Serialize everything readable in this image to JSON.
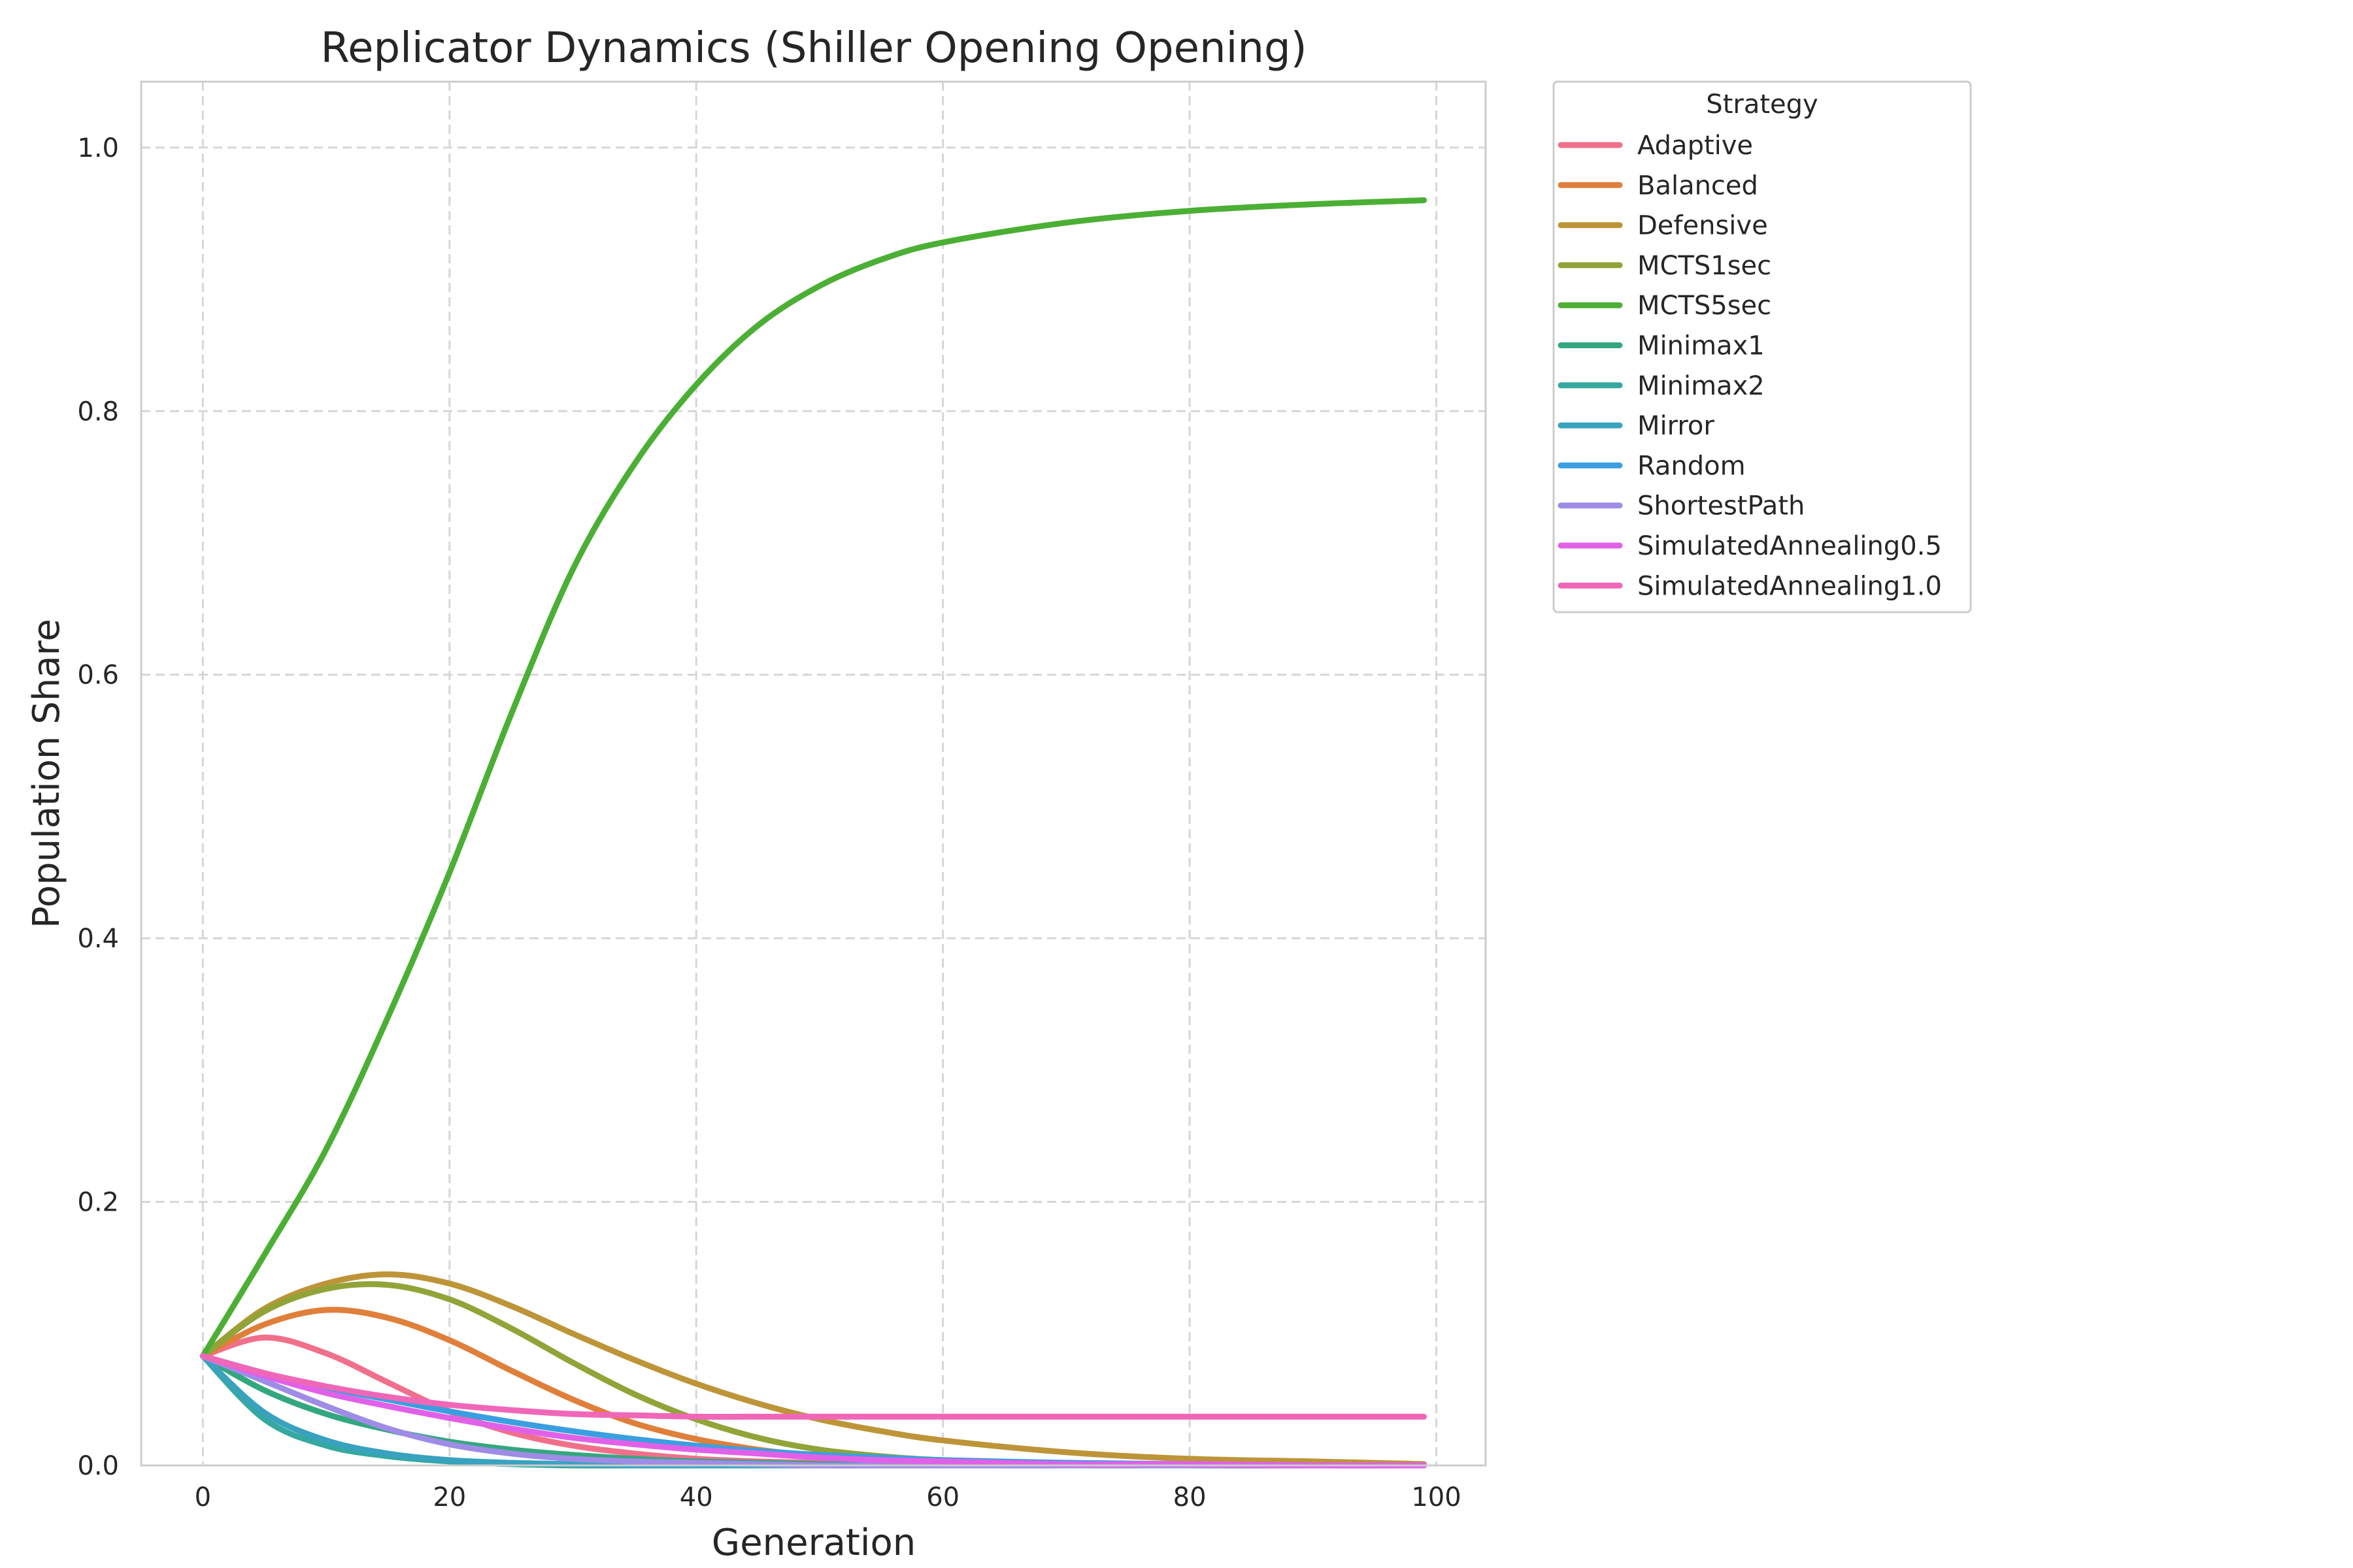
{
  "chart_data": {
    "type": "line",
    "title": "Replicator Dynamics (Shiller Opening Opening)",
    "xlabel": "Generation",
    "ylabel": "Population Share",
    "xlim": [
      -5,
      104
    ],
    "ylim": [
      0,
      1.05
    ],
    "xticks": [
      0,
      20,
      40,
      60,
      80,
      100
    ],
    "yticks": [
      0.0,
      0.2,
      0.4,
      0.6,
      0.8,
      1.0
    ],
    "xtick_labels": [
      "0",
      "20",
      "40",
      "60",
      "80",
      "100"
    ],
    "ytick_labels": [
      "0.0",
      "0.2",
      "0.4",
      "0.6",
      "0.8",
      "1.0"
    ],
    "grid": true,
    "legend_title": "Strategy",
    "legend_position": "outside upper right",
    "x": [
      0,
      5,
      10,
      15,
      20,
      25,
      30,
      35,
      40,
      45,
      50,
      55,
      60,
      70,
      80,
      90,
      99
    ],
    "series": [
      {
        "name": "Adaptive",
        "color": "#f0708c",
        "values": [
          0.083,
          0.097,
          0.085,
          0.063,
          0.041,
          0.025,
          0.015,
          0.009,
          0.005,
          0.003,
          0.002,
          0.001,
          0.001,
          0.0,
          0.0,
          0.0,
          0.0
        ]
      },
      {
        "name": "Balanced",
        "color": "#e07f3a",
        "values": [
          0.083,
          0.107,
          0.118,
          0.112,
          0.095,
          0.072,
          0.05,
          0.032,
          0.02,
          0.012,
          0.007,
          0.004,
          0.002,
          0.001,
          0.0,
          0.0,
          0.0
        ]
      },
      {
        "name": "Defensive",
        "color": "#bd9538",
        "values": [
          0.083,
          0.119,
          0.138,
          0.145,
          0.138,
          0.121,
          0.1,
          0.08,
          0.062,
          0.047,
          0.035,
          0.026,
          0.019,
          0.01,
          0.005,
          0.003,
          0.001
        ]
      },
      {
        "name": "MCTS1sec",
        "color": "#90a438",
        "values": [
          0.083,
          0.117,
          0.134,
          0.137,
          0.126,
          0.104,
          0.078,
          0.054,
          0.035,
          0.021,
          0.012,
          0.007,
          0.004,
          0.001,
          0.0,
          0.0,
          0.0
        ]
      },
      {
        "name": "MCTS5sec",
        "color": "#4caf35",
        "values": [
          0.083,
          0.16,
          0.24,
          0.34,
          0.45,
          0.57,
          0.68,
          0.76,
          0.82,
          0.865,
          0.895,
          0.915,
          0.928,
          0.943,
          0.952,
          0.957,
          0.96
        ]
      },
      {
        "name": "Minimax1",
        "color": "#33a77e",
        "values": [
          0.083,
          0.057,
          0.039,
          0.027,
          0.018,
          0.012,
          0.008,
          0.005,
          0.003,
          0.002,
          0.001,
          0.001,
          0.0,
          0.0,
          0.0,
          0.0,
          0.0
        ]
      },
      {
        "name": "Minimax2",
        "color": "#35a8a0",
        "values": [
          0.083,
          0.035,
          0.015,
          0.007,
          0.003,
          0.001,
          0.0,
          0.0,
          0.0,
          0.0,
          0.0,
          0.0,
          0.0,
          0.0,
          0.0,
          0.0,
          0.0
        ]
      },
      {
        "name": "Mirror",
        "color": "#38a2bf",
        "values": [
          0.083,
          0.04,
          0.019,
          0.009,
          0.004,
          0.002,
          0.001,
          0.0,
          0.0,
          0.0,
          0.0,
          0.0,
          0.0,
          0.0,
          0.0,
          0.0,
          0.0
        ]
      },
      {
        "name": "Random",
        "color": "#3a9fe0",
        "values": [
          0.083,
          0.07,
          0.059,
          0.05,
          0.041,
          0.033,
          0.026,
          0.02,
          0.015,
          0.011,
          0.008,
          0.006,
          0.004,
          0.002,
          0.001,
          0.0,
          0.0
        ]
      },
      {
        "name": "ShortestPath",
        "color": "#9e8ce6",
        "values": [
          0.083,
          0.064,
          0.045,
          0.028,
          0.016,
          0.009,
          0.005,
          0.003,
          0.002,
          0.001,
          0.0,
          0.0,
          0.0,
          0.0,
          0.0,
          0.0,
          0.0
        ]
      },
      {
        "name": "SimulatedAnnealing0.5",
        "color": "#e061e8",
        "values": [
          0.083,
          0.068,
          0.055,
          0.045,
          0.036,
          0.028,
          0.021,
          0.016,
          0.012,
          0.009,
          0.006,
          0.004,
          0.003,
          0.001,
          0.001,
          0.0,
          0.0
        ]
      },
      {
        "name": "SimulatedAnnealing1.0",
        "color": "#f067b8",
        "values": [
          0.083,
          0.07,
          0.06,
          0.052,
          0.046,
          0.042,
          0.039,
          0.038,
          0.037,
          0.037,
          0.037,
          0.037,
          0.037,
          0.037,
          0.037,
          0.037,
          0.037
        ]
      }
    ]
  }
}
